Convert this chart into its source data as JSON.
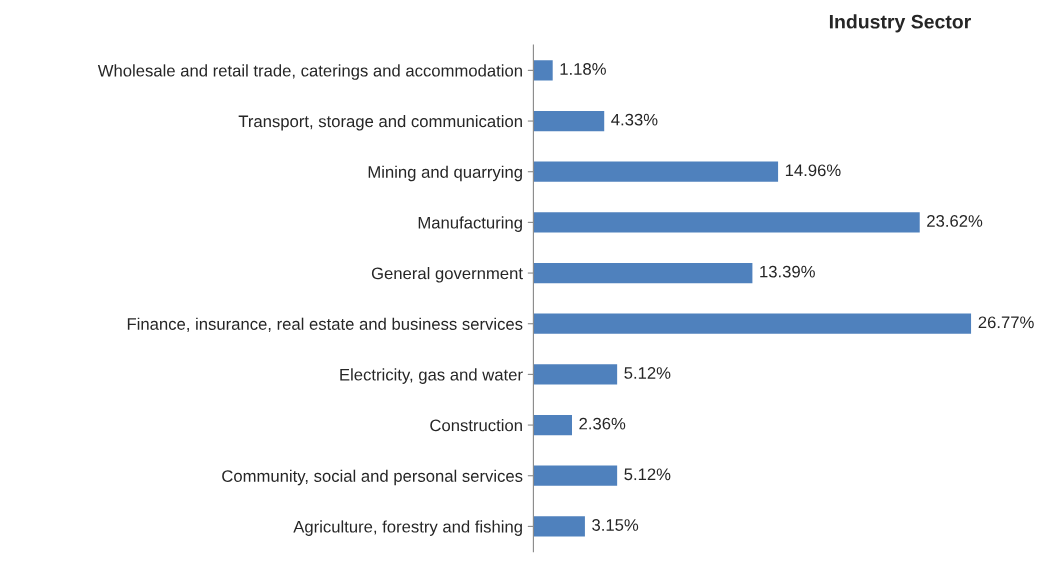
{
  "chart_data": {
    "type": "bar",
    "orientation": "horizontal",
    "title": "Industry Sector",
    "categories": [
      "Wholesale and retail trade, caterings and accommodation",
      "Transport, storage and communication",
      "Mining and quarrying",
      "Manufacturing",
      "General government",
      "Finance, insurance, real estate and business services",
      "Electricity, gas and water",
      "Construction",
      "Community, social and personal services",
      "Agriculture, forestry and fishing"
    ],
    "values": [
      1.18,
      4.33,
      14.96,
      23.62,
      13.39,
      26.77,
      5.12,
      2.36,
      5.12,
      3.15
    ],
    "value_labels": [
      "1.18%",
      "4.33%",
      "14.96%",
      "23.62%",
      "13.39%",
      "26.77%",
      "5.12%",
      "2.36%",
      "5.12%",
      "3.15%"
    ],
    "color": "#4f81bd",
    "grid": false
  }
}
